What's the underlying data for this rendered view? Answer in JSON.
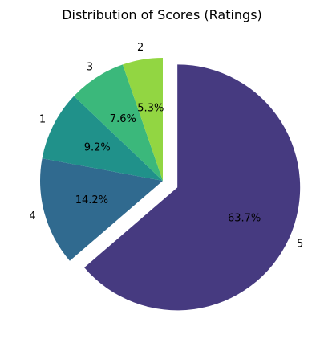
{
  "chart_data": {
    "type": "pie",
    "title": "Distribution of Scores (Ratings)",
    "slices": [
      {
        "label": "5",
        "percent": 63.7,
        "percent_label": "63.7%",
        "color": "#463a80",
        "exploded": true
      },
      {
        "label": "4",
        "percent": 14.2,
        "percent_label": "14.2%",
        "color": "#306a8f",
        "exploded": false
      },
      {
        "label": "1",
        "percent": 9.2,
        "percent_label": "9.2%",
        "color": "#20918a",
        "exploded": false
      },
      {
        "label": "3",
        "percent": 7.6,
        "percent_label": "7.6%",
        "color": "#3bb87b",
        "exploded": false
      },
      {
        "label": "2",
        "percent": 5.3,
        "percent_label": "5.3%",
        "color": "#92d642",
        "exploded": false
      }
    ],
    "start_angle_deg": 90,
    "direction": "clockwise"
  }
}
